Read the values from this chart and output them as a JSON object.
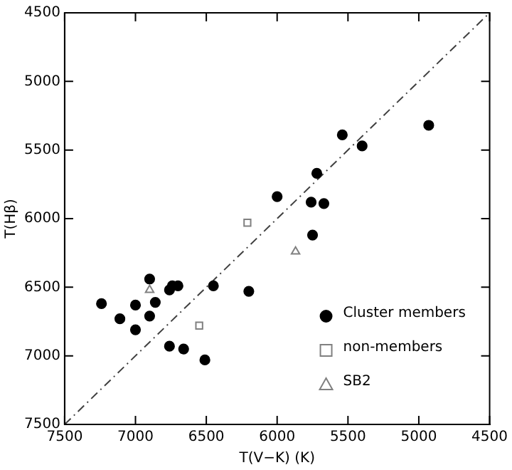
{
  "chart_data": {
    "type": "scatter",
    "xlabel": "T(V−K) (K)",
    "ylabel": "T(Hβ)",
    "xlim": [
      7500,
      4500
    ],
    "xticks": [
      7500,
      7000,
      6500,
      6000,
      5500,
      5000,
      4500
    ],
    "ylim": [
      7500,
      4500
    ],
    "yticks": [
      4500,
      5000,
      5500,
      6000,
      6500,
      7000,
      7500
    ],
    "grid": false,
    "legend": "bottom right",
    "series": [
      {
        "name": "Cluster members",
        "color": "#000000",
        "marker": "circle",
        "x": [
          4930,
          5540,
          5400,
          5720,
          6000,
          5760,
          5670,
          5750,
          7240,
          7000,
          6860,
          7110,
          6900,
          7000,
          6900,
          6760,
          6740,
          6700,
          6450,
          6200,
          6760,
          6660,
          6510
        ],
        "values": [
          5320,
          5390,
          5470,
          5670,
          5840,
          5880,
          5890,
          6120,
          6620,
          6630,
          6610,
          6730,
          6710,
          6810,
          6440,
          6520,
          6490,
          6490,
          6490,
          6530,
          6930,
          6950,
          7030
        ]
      },
      {
        "name": "non-members",
        "color": "#808080",
        "marker": "square",
        "x": [
          6210,
          6550
        ],
        "values": [
          6030,
          6780
        ]
      },
      {
        "name": "SB2",
        "color": "#808080",
        "marker": "triangle",
        "x": [
          5870,
          6900
        ],
        "values": [
          6240,
          6520
        ]
      },
      {
        "type": "line",
        "color": "#404040",
        "marker": "none",
        "line_style": "dashed",
        "x": [
          7500,
          4500
        ],
        "values": [
          7500,
          4500
        ]
      }
    ]
  }
}
